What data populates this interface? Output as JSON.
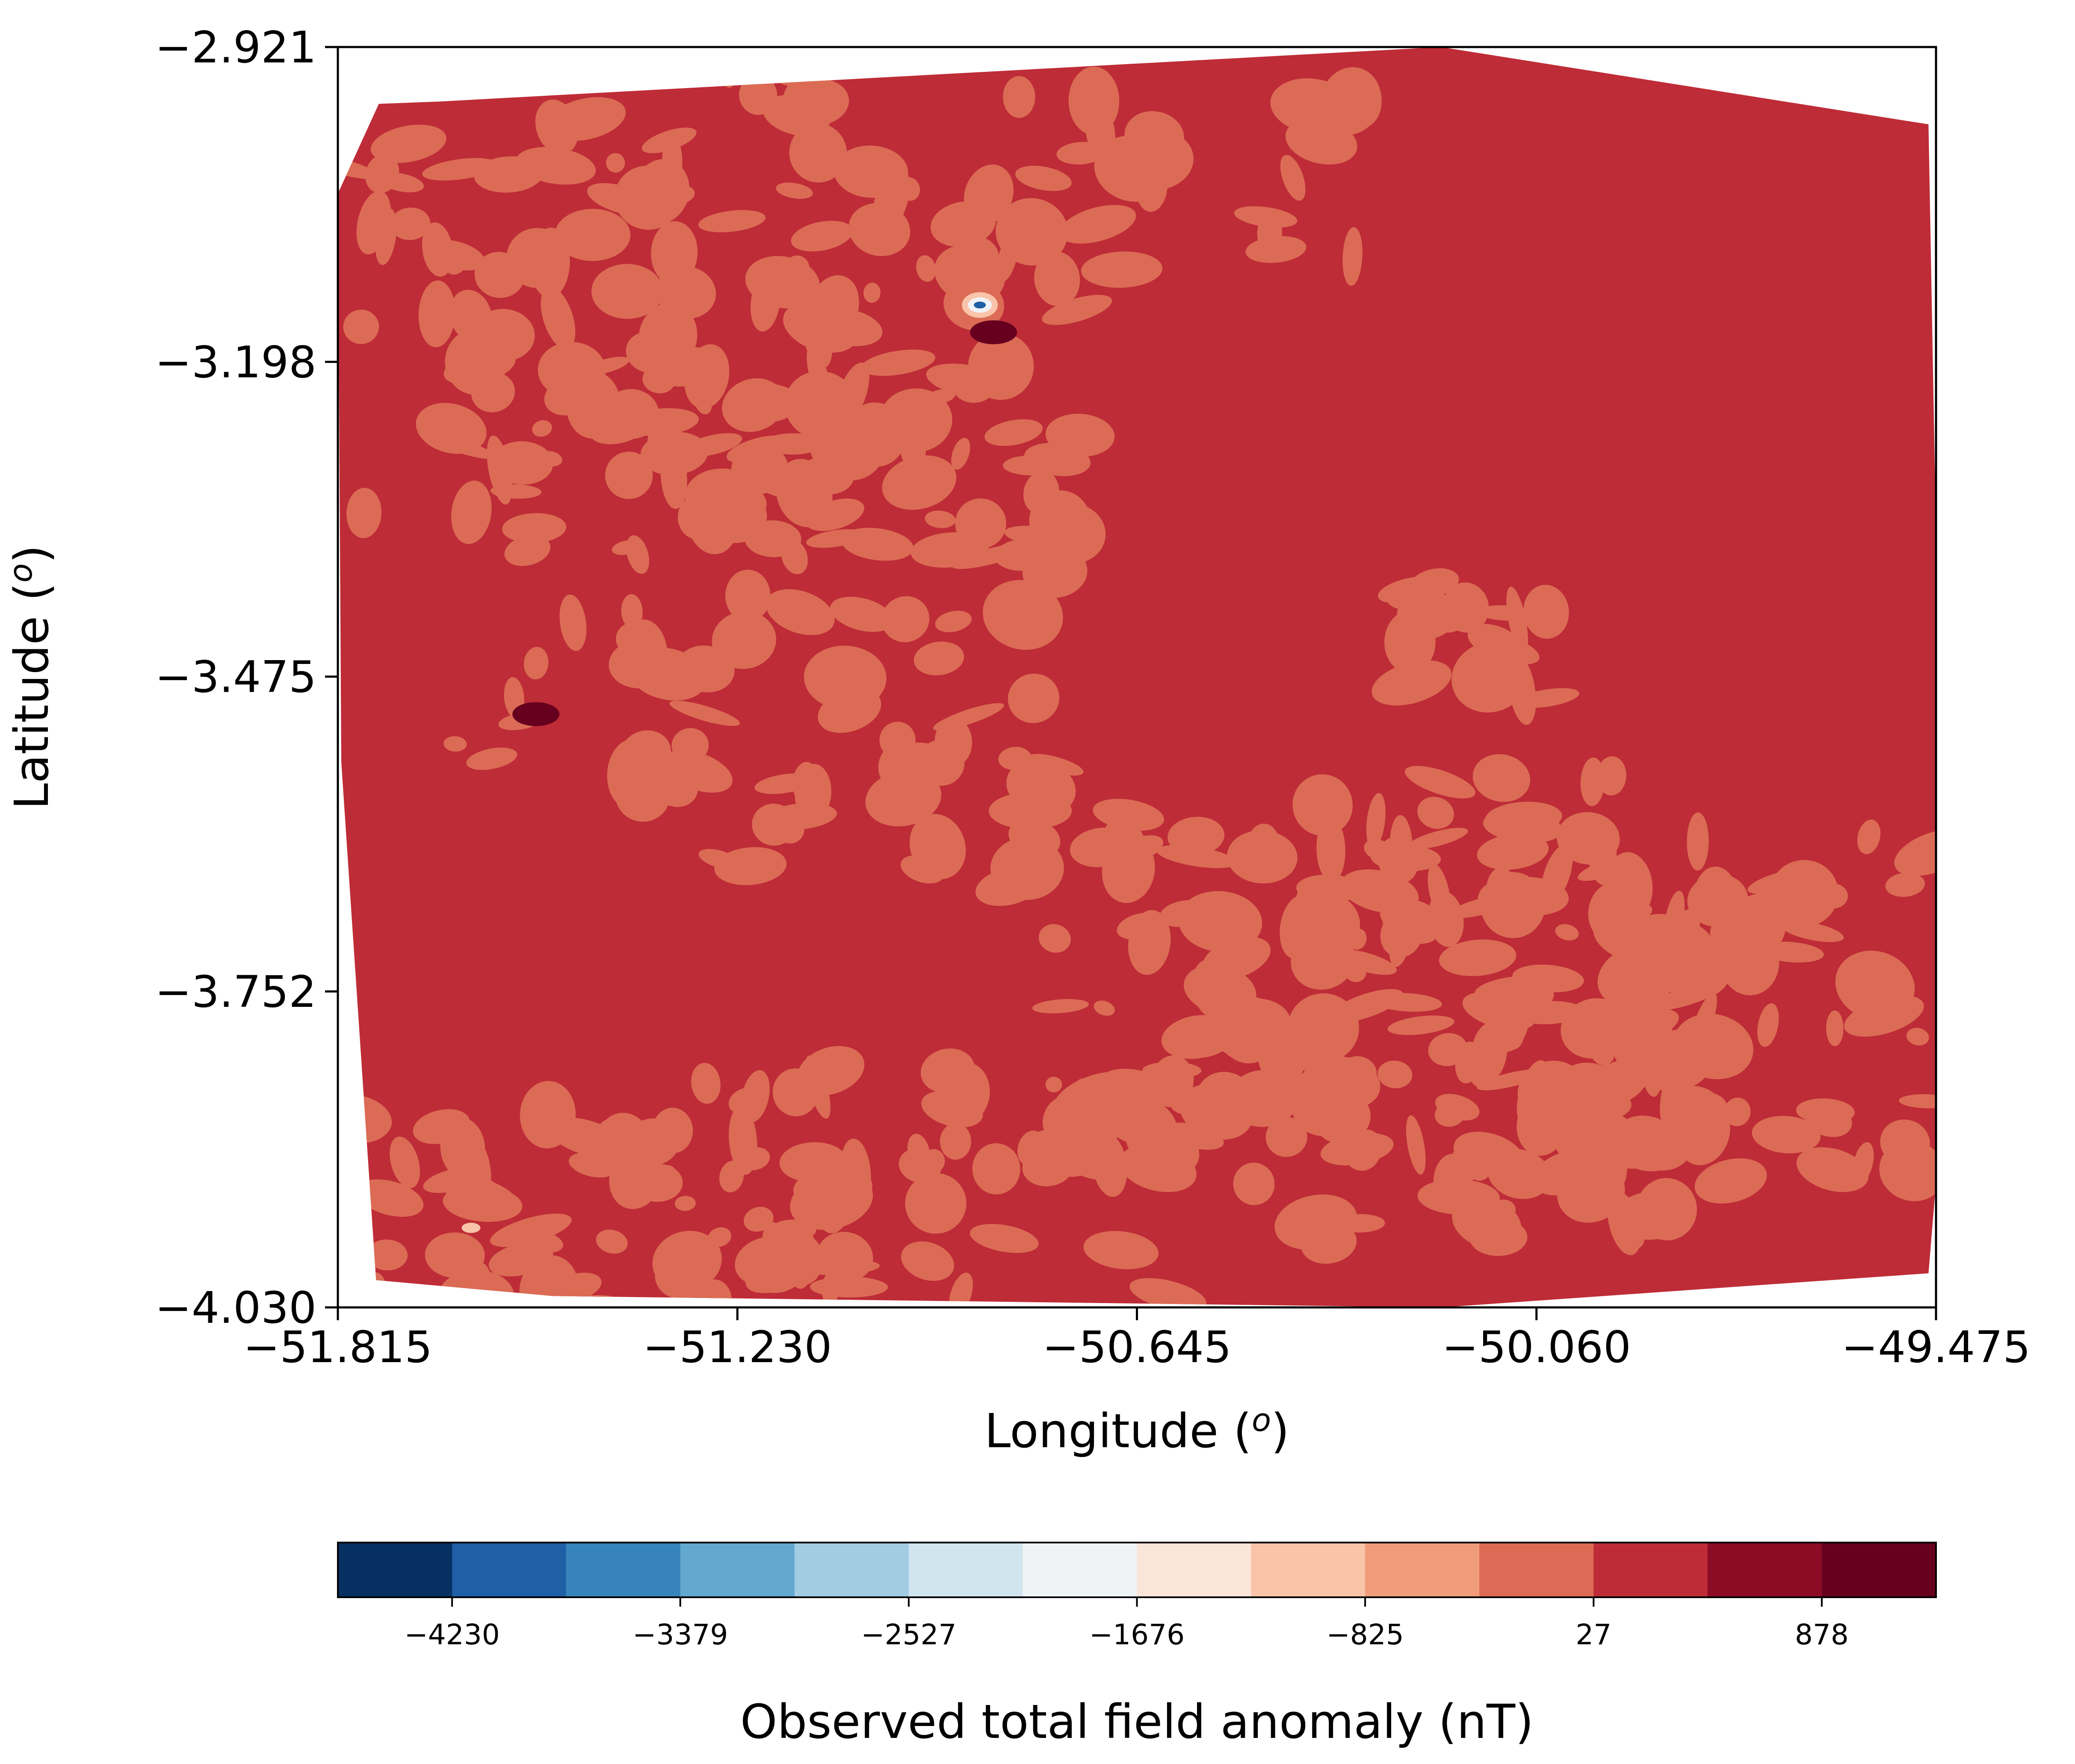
{
  "chart_data": [
    {
      "type": "heatmap",
      "subtype": "filled-contour-map",
      "xlabel": "Longitude (",
      "xlabel_superscript": "o",
      "xlabel_suffix": ")",
      "ylabel": "Latitude (",
      "ylabel_superscript": "o",
      "ylabel_suffix": ")",
      "xlim": [
        -51.815,
        -49.475
      ],
      "ylim": [
        -4.03,
        -2.921
      ],
      "xticks": [
        -51.815,
        -51.23,
        -50.645,
        -50.06,
        -49.475
      ],
      "xtick_labels": [
        "−51.815",
        "−51.230",
        "−50.645",
        "−50.060",
        "−49.475"
      ],
      "yticks": [
        -2.921,
        -3.198,
        -3.475,
        -3.752,
        -4.03
      ],
      "ytick_labels": [
        "−2.921",
        "−3.198",
        "−3.475",
        "−3.752",
        "−4.030"
      ],
      "dominant_level_color": "#be2c37",
      "secondary_level_color": "#db6b55",
      "survey_outline": [
        [
          -51.755,
          -2.971
        ],
        [
          -51.668,
          -2.969
        ],
        [
          -50.2,
          -2.921
        ],
        [
          -49.486,
          -2.989
        ],
        [
          -49.475,
          -3.35
        ],
        [
          -49.475,
          -3.92
        ],
        [
          -49.486,
          -4.0
        ],
        [
          -50.2,
          -4.03
        ],
        [
          -51.5,
          -4.02
        ],
        [
          -51.759,
          -4.006
        ],
        [
          -51.81,
          -3.55
        ],
        [
          -51.815,
          -3.05
        ]
      ],
      "anomaly_features": [
        {
          "lon": -50.875,
          "lat": -3.148,
          "kind": "negative-dipole",
          "value_nT": -4230
        },
        {
          "lon": -50.855,
          "lat": -3.172,
          "kind": "positive-high",
          "value_nT": 878
        },
        {
          "lon": -51.525,
          "lat": -3.508,
          "kind": "positive-high",
          "value_nT": 878
        },
        {
          "lon": -51.62,
          "lat": -3.96,
          "kind": "weak-low",
          "value_nT": -1250
        }
      ]
    },
    {
      "type": "colorbar",
      "title": "Observed total field anomaly (nT)",
      "levels": [
        -4656,
        -4230,
        -3805,
        -3379,
        -2953,
        -2527,
        -2102,
        -1676,
        -1250,
        -825,
        -399,
        27,
        452,
        878,
        1304
      ],
      "colors": [
        "#053061",
        "#1f5fa5",
        "#3783bb",
        "#63a8cf",
        "#a1cce2",
        "#d1e5ef",
        "#eff3f5",
        "#fbe5d8",
        "#f9c4a9",
        "#f09c7b",
        "#db6b55",
        "#be2c37",
        "#8d0c25",
        "#67001f"
      ],
      "tick_values": [
        -4230,
        -3379,
        -2527,
        -1676,
        -825,
        27,
        878
      ],
      "tick_labels": [
        "−4230",
        "−3379",
        "−2527",
        "−1676",
        "−825",
        "27",
        "878"
      ]
    }
  ]
}
